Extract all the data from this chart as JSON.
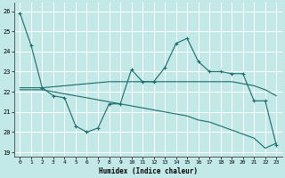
{
  "xlabel": "Humidex (Indice chaleur)",
  "xlim": [
    -0.5,
    23.5
  ],
  "ylim": [
    18.8,
    26.4
  ],
  "yticks": [
    19,
    20,
    21,
    22,
    23,
    24,
    25,
    26
  ],
  "xticks": [
    0,
    1,
    2,
    3,
    4,
    5,
    6,
    7,
    8,
    9,
    10,
    11,
    12,
    13,
    14,
    15,
    16,
    17,
    18,
    19,
    20,
    21,
    22,
    23
  ],
  "bg_color": "#c2e8e8",
  "grid_color": "#ffffff",
  "line_color": "#1a6b6b",
  "curve1_x": [
    0,
    1,
    2,
    3,
    4,
    5,
    6,
    7,
    8,
    9,
    10,
    11,
    12,
    13,
    14,
    15,
    16,
    17,
    18,
    19,
    20,
    21,
    22,
    23
  ],
  "curve1_y": [
    25.9,
    24.3,
    22.2,
    21.8,
    21.7,
    20.3,
    20.0,
    20.2,
    21.4,
    21.4,
    23.1,
    22.5,
    22.5,
    23.2,
    24.4,
    24.65,
    23.5,
    23.0,
    23.0,
    22.9,
    22.9,
    21.55,
    21.55,
    19.35
  ],
  "curve2_x": [
    0,
    1,
    2,
    3,
    4,
    5,
    6,
    7,
    8,
    9,
    10,
    11,
    12,
    13,
    14,
    15,
    16,
    17,
    18,
    19,
    20,
    21,
    22,
    23
  ],
  "curve2_y": [
    22.2,
    22.2,
    22.2,
    22.25,
    22.3,
    22.35,
    22.4,
    22.45,
    22.5,
    22.5,
    22.5,
    22.5,
    22.5,
    22.5,
    22.5,
    22.5,
    22.5,
    22.5,
    22.5,
    22.5,
    22.4,
    22.3,
    22.1,
    21.8
  ],
  "curve3_x": [
    0,
    1,
    2,
    3,
    4,
    5,
    6,
    7,
    8,
    9,
    10,
    11,
    12,
    13,
    14,
    15,
    16,
    17,
    18,
    19,
    20,
    21,
    22,
    23
  ],
  "curve3_y": [
    22.1,
    22.1,
    22.1,
    22.0,
    21.9,
    21.8,
    21.7,
    21.6,
    21.5,
    21.4,
    21.3,
    21.2,
    21.1,
    21.0,
    20.9,
    20.8,
    20.6,
    20.5,
    20.3,
    20.1,
    19.9,
    19.7,
    19.2,
    19.45
  ]
}
